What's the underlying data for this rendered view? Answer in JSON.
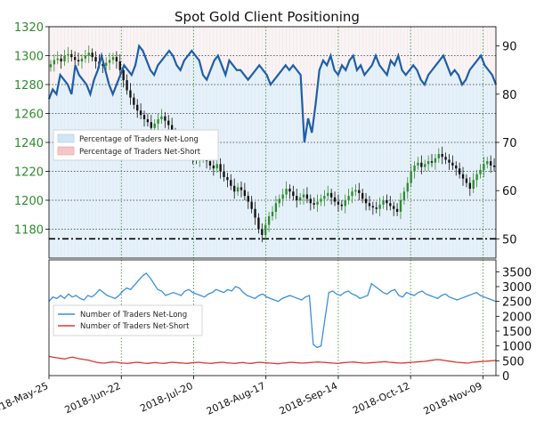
{
  "chart_data": {
    "type": "candlestick+line",
    "title": "Spot Gold Client Positioning",
    "x_axis": {
      "tick_labels": [
        "2018-May-25",
        "2018-Jun-22",
        "2018-Jul-20",
        "2018-Aug-17",
        "2018-Sep-14",
        "2018-Oct-12",
        "2018-Nov-09"
      ]
    },
    "top_panel": {
      "y_left": {
        "range": [
          1160,
          1320
        ],
        "ticks": [
          1180,
          1200,
          1220,
          1240,
          1260,
          1280,
          1300,
          1320
        ],
        "color": "#2e8b2e"
      },
      "y_right": {
        "range": [
          46,
          94
        ],
        "ticks": [
          50,
          60,
          70,
          80,
          90
        ]
      },
      "reference_line_right": 50,
      "legend": {
        "placement": "center-left",
        "entries": [
          {
            "label": "Percentage of Traders Net-Long",
            "color": "#cfe6f7"
          },
          {
            "label": "Percentage of Traders Net-Short",
            "color": "#f6c6c6"
          }
        ]
      },
      "net_long_pct": {
        "color": "#1f5fa8",
        "values": [
          79,
          81,
          80,
          84,
          83,
          82,
          80,
          86,
          84,
          83,
          82,
          80,
          83,
          85,
          88,
          85,
          82,
          80,
          82,
          84,
          86,
          85,
          84,
          86,
          90,
          89,
          87,
          85,
          84,
          86,
          87,
          88,
          89,
          88,
          86,
          85,
          87,
          88,
          89,
          88,
          87,
          84,
          83,
          85,
          87,
          88,
          86,
          84,
          87,
          86,
          85,
          85,
          84,
          83,
          84,
          85,
          86,
          85,
          84,
          82,
          83,
          84,
          85,
          86,
          85,
          86,
          85,
          84,
          70,
          75,
          72,
          78,
          85,
          87,
          86,
          88,
          85,
          84,
          86,
          85,
          87,
          88,
          85,
          86,
          84,
          85,
          86,
          88,
          86,
          85,
          84,
          87,
          86,
          88,
          85,
          84,
          85,
          86,
          85,
          83,
          82,
          84,
          85,
          86,
          87,
          88,
          86,
          84,
          85,
          84,
          82,
          83,
          85,
          86,
          87,
          88,
          86,
          85,
          84,
          82
        ]
      },
      "price_candles": {
        "up_color": "#2e8b2e",
        "down_color": "#111111",
        "closes": [
          1294,
          1297,
          1298,
          1296,
          1300,
          1301,
          1299,
          1297,
          1296,
          1298,
          1300,
          1302,
          1299,
          1296,
          1294,
          1293,
          1295,
          1297,
          1299,
          1296,
          1290,
          1283,
          1276,
          1271,
          1266,
          1262,
          1259,
          1256,
          1254,
          1250,
          1253,
          1256,
          1258,
          1255,
          1252,
          1247,
          1243,
          1241,
          1238,
          1235,
          1232,
          1230,
          1228,
          1229,
          1231,
          1227,
          1224,
          1222,
          1225,
          1220,
          1216,
          1214,
          1210,
          1206,
          1209,
          1207,
          1203,
          1199,
          1194,
          1188,
          1180,
          1176,
          1183,
          1189,
          1192,
          1198,
          1201,
          1204,
          1208,
          1206,
          1203,
          1200,
          1202,
          1204,
          1201,
          1198,
          1197,
          1199,
          1201,
          1203,
          1205,
          1202,
          1199,
          1197,
          1196,
          1200,
          1203,
          1206,
          1207,
          1205,
          1201,
          1198,
          1196,
          1195,
          1194,
          1197,
          1200,
          1198,
          1196,
          1194,
          1192,
          1200,
          1206,
          1212,
          1220,
          1224,
          1226,
          1223,
          1225,
          1227,
          1226,
          1229,
          1232,
          1230,
          1228,
          1226,
          1224,
          1222,
          1218,
          1215,
          1212,
          1208,
          1214,
          1218,
          1221,
          1225,
          1227,
          1224,
          1223
        ]
      }
    },
    "bottom_panel": {
      "y_right": {
        "range": [
          0,
          3900
        ],
        "ticks": [
          0,
          500,
          1000,
          1500,
          2000,
          2500,
          3000,
          3500
        ]
      },
      "legend": {
        "placement": "center-left",
        "entries": [
          {
            "label": "Number of Traders Net-Long",
            "color": "#3a8fd9"
          },
          {
            "label": "Number of Traders Net-Short",
            "color": "#d93a3a"
          }
        ]
      },
      "net_long_count": {
        "color": "#3a8fd9",
        "values": [
          2500,
          2650,
          2600,
          2700,
          2600,
          2750,
          2650,
          2700,
          2600,
          2550,
          2700,
          2650,
          2750,
          2900,
          2800,
          2700,
          2650,
          2600,
          2700,
          2850,
          2950,
          2900,
          3050,
          3200,
          3350,
          3450,
          3300,
          3100,
          2900,
          2850,
          2700,
          2750,
          2800,
          2750,
          2700,
          2850,
          2900,
          2800,
          2750,
          2700,
          2650,
          2750,
          2800,
          2900,
          2850,
          2800,
          2900,
          2850,
          3000,
          2950,
          2800,
          2700,
          2650,
          2600,
          2700,
          2750,
          2650,
          2600,
          2550,
          2500,
          2600,
          2650,
          2700,
          2650,
          2600,
          2550,
          2650,
          2700,
          1050,
          950,
          1000,
          1900,
          2800,
          2850,
          2750,
          2700,
          2800,
          2850,
          2750,
          2700,
          2600,
          2650,
          2700,
          3100,
          3000,
          2900,
          2800,
          2750,
          2850,
          2900,
          2700,
          2650,
          2800,
          2750,
          2700,
          2800,
          2850,
          2750,
          2700,
          2650,
          2600,
          2700,
          2750,
          2650,
          2600,
          2550,
          2600,
          2650,
          2700,
          2750,
          2800,
          2700,
          2650,
          2600,
          2550,
          2500
        ]
      },
      "net_short_count": {
        "color": "#d93a3a",
        "values": [
          650,
          620,
          600,
          580,
          560,
          600,
          620,
          590,
          560,
          540,
          520,
          480,
          450,
          430,
          420,
          440,
          460,
          450,
          430,
          420,
          410,
          430,
          450,
          440,
          420,
          410,
          430,
          440,
          420,
          410,
          430,
          450,
          440,
          430,
          420,
          410,
          430,
          440,
          450,
          430,
          420,
          410,
          430,
          440,
          450,
          430,
          420,
          410,
          430,
          440,
          420,
          410,
          430,
          450,
          440,
          430,
          420,
          410,
          400,
          420,
          430,
          450,
          440,
          430,
          420,
          430,
          440,
          450,
          460,
          450,
          440,
          430,
          420,
          410,
          430,
          440,
          450,
          460,
          440,
          430,
          420,
          430,
          440,
          450,
          460,
          470,
          450,
          440,
          430,
          420,
          430,
          440,
          450,
          460,
          470,
          480,
          500,
          520,
          540,
          530,
          510,
          490,
          470,
          450,
          440,
          430,
          420,
          450,
          460,
          470,
          480,
          490,
          500,
          510
        ]
      }
    }
  }
}
